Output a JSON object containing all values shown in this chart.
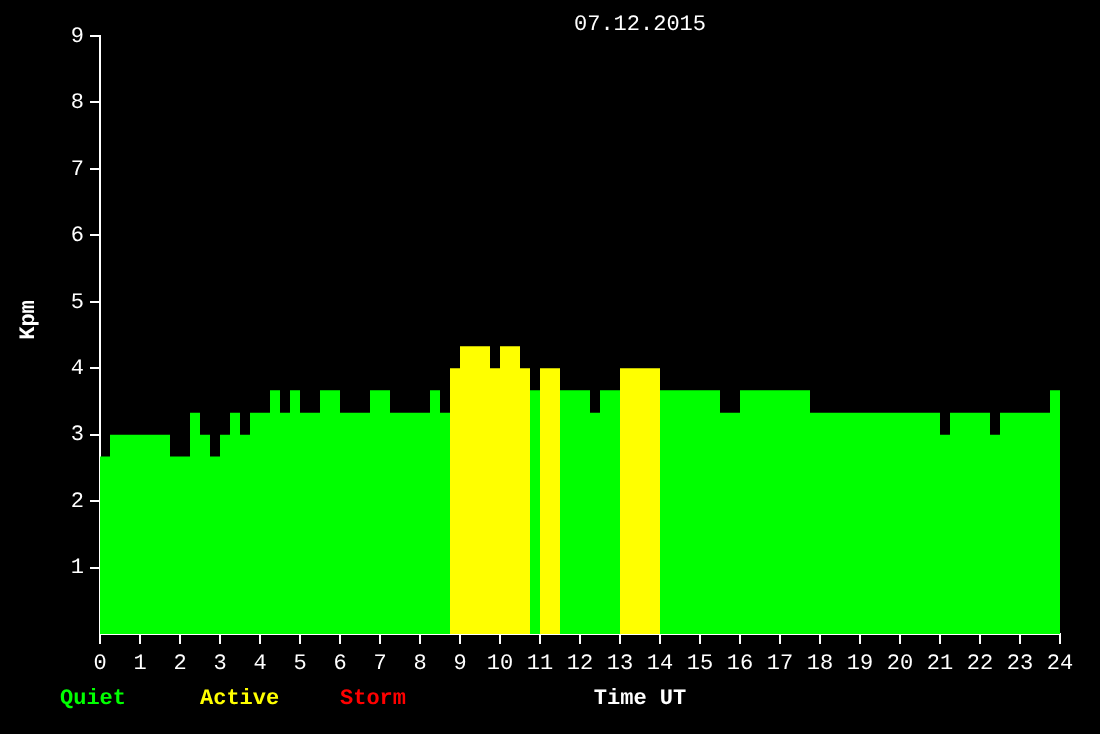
{
  "chart_data": {
    "type": "histogram",
    "title": "07.12.2015",
    "xlabel": "Time UT",
    "ylabel": "Kpm",
    "bins": [
      0,
      0.25,
      1.75,
      2.25,
      2.5,
      2.75,
      3,
      3.25,
      3.5,
      3.75,
      4.25,
      4.5,
      4.75,
      5,
      5.5,
      6,
      6.75,
      7.25,
      8.25,
      8.5,
      8.75,
      9,
      9.75,
      10,
      10.5,
      10.75,
      11,
      11.5,
      12.25,
      12.5,
      13,
      14,
      15.5,
      16,
      17.75,
      21,
      21.25,
      22.25,
      22.5,
      23.75,
      24
    ],
    "series": [
      {
        "name": "Quiet",
        "color": "#00ff00",
        "values": [
          2.67,
          3,
          2.67,
          3.33,
          3,
          2.67,
          3,
          3.33,
          3,
          3.33,
          3.67,
          3.33,
          3.67,
          3.33,
          3.67,
          3.33,
          3.67,
          3.33,
          3.67,
          3.33,
          null,
          null,
          null,
          null,
          null,
          3.67,
          null,
          3.67,
          3.33,
          3.67,
          null,
          3.67,
          3.33,
          3.67,
          3.33,
          3,
          3.33,
          3,
          3.33,
          3.67
        ]
      },
      {
        "name": "Active",
        "color": "#ffff00",
        "values": [
          null,
          null,
          null,
          null,
          null,
          null,
          null,
          null,
          null,
          null,
          null,
          null,
          null,
          null,
          null,
          null,
          null,
          null,
          null,
          null,
          4,
          4.33,
          4,
          4.33,
          4,
          null,
          4,
          null,
          null,
          null,
          4,
          null,
          null,
          null,
          null,
          null,
          null,
          null,
          null,
          null
        ]
      }
    ],
    "annotations": [
      "Storm"
    ],
    "xlim": [
      0,
      24
    ],
    "xticks": [
      0,
      1,
      2,
      3,
      4,
      5,
      6,
      7,
      8,
      9,
      10,
      11,
      12,
      13,
      14,
      15,
      16,
      17,
      18,
      19,
      20,
      21,
      22,
      23,
      24
    ],
    "ylim": [
      0,
      9
    ],
    "yticks": [
      1,
      2,
      3,
      4,
      5,
      6,
      7,
      8,
      9
    ],
    "grid": false,
    "legend": "bottom left"
  }
}
